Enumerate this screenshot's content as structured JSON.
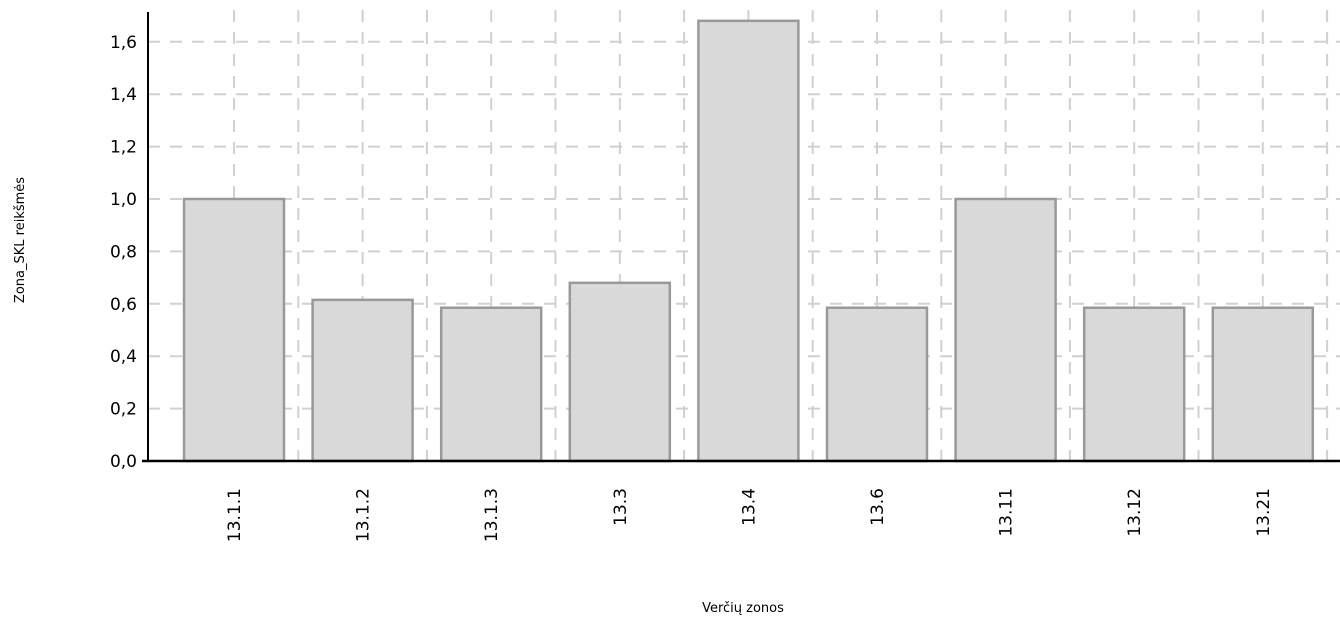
{
  "chart_data": {
    "type": "bar",
    "title": "",
    "xlabel": "Verčių zonos",
    "ylabel": "Zona_SKL reikšmės",
    "categories": [
      "13.1.1",
      "13.1.2",
      "13.1.3",
      "13.3",
      "13.4",
      "13.6",
      "13.11",
      "13.12",
      "13.21"
    ],
    "values": [
      1.0,
      0.615,
      0.585,
      0.68,
      1.68,
      0.585,
      1.0,
      0.585,
      0.585
    ],
    "ylim": [
      0,
      1.7
    ],
    "yticks": [
      "0,0",
      "0,2",
      "0,4",
      "0,6",
      "0,8",
      "1,0",
      "1,2",
      "1,4",
      "1,6"
    ],
    "grid": true,
    "legend": "none",
    "colors": {
      "bar_fill": "#d9d9d9",
      "bar_stroke": "#999999",
      "grid": "#d0d0d0",
      "axis": "#000000"
    }
  }
}
